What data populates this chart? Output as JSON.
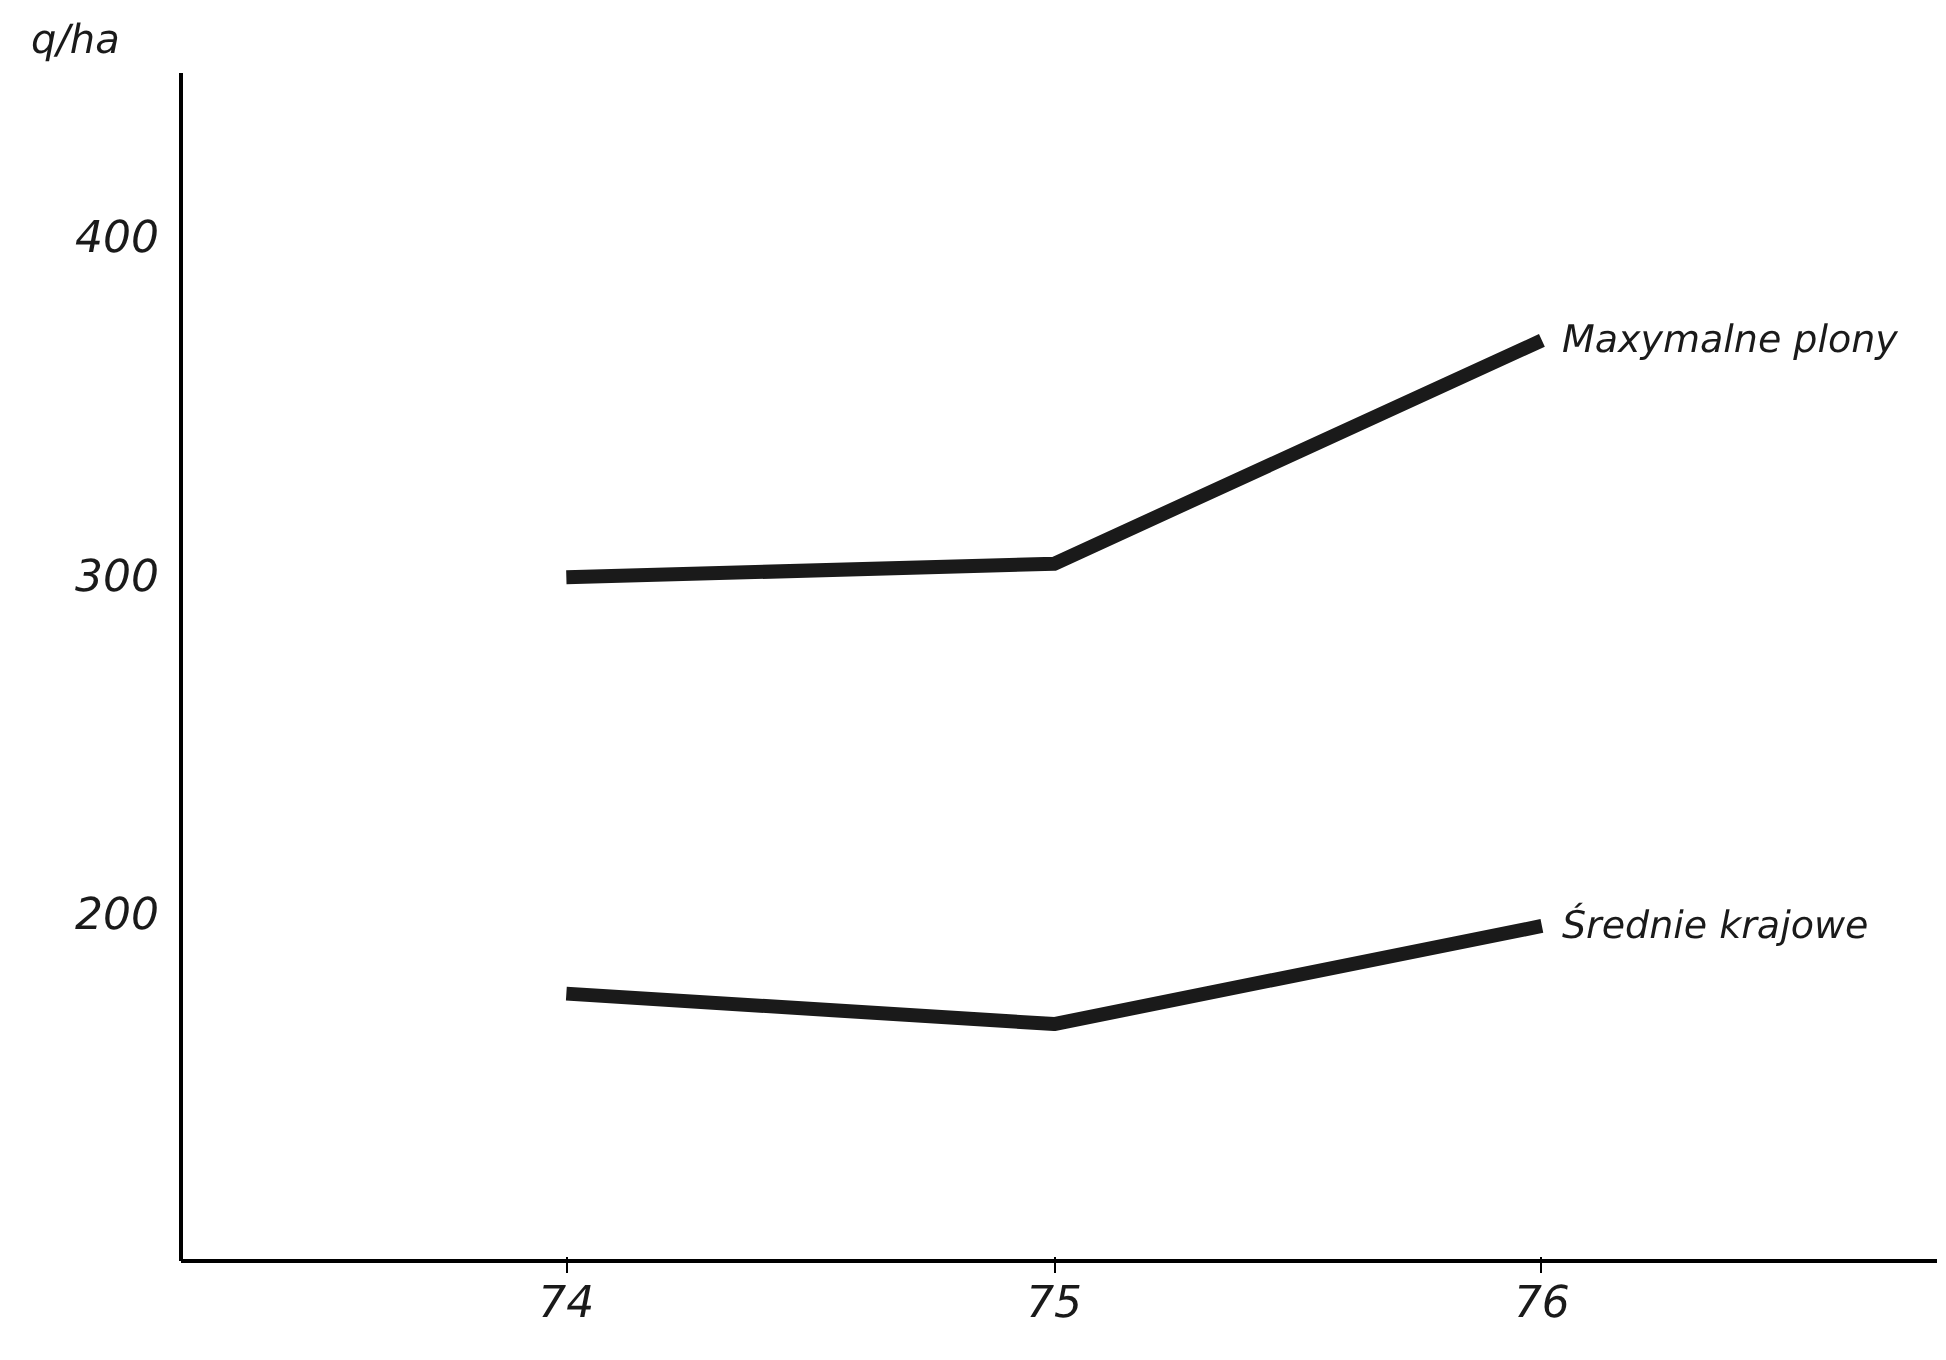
{
  "chart_data": {
    "type": "line",
    "ylabel": "q/ha",
    "x": [
      74,
      75,
      76
    ],
    "xlim": [
      73.21,
      76.81
    ],
    "xticks": [
      74,
      75,
      76
    ],
    "ylim": [
      97,
      448
    ],
    "yticks": [
      200,
      300,
      400
    ],
    "grid": false,
    "legend": false,
    "marker": "none",
    "line_style": "solid",
    "series": [
      {
        "name": "Maxymalne plony",
        "color": "#1a1a1a",
        "values": [
          299,
          303,
          369
        ]
      },
      {
        "name": "Średnie krajowe",
        "color": "#1a1a1a",
        "values": [
          176,
          167,
          196
        ]
      }
    ]
  }
}
